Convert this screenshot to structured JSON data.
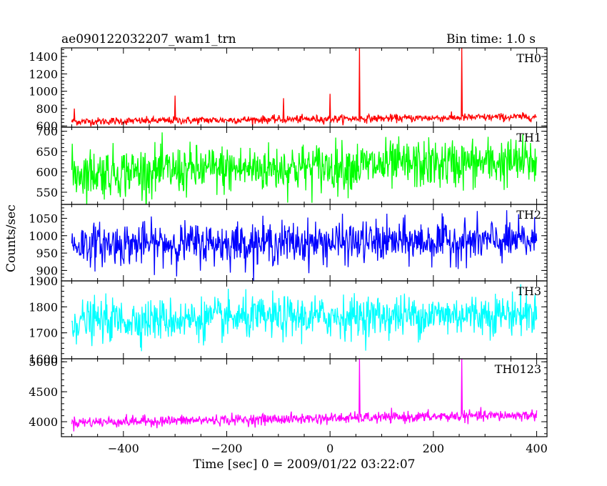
{
  "chart_data": {
    "type": "line",
    "title": "ae090122032207_wam1_trn",
    "subtitle": "Bin time: 1.0 s",
    "xlabel": "Time [sec] 0 = 2009/01/22 03:22:07",
    "ylabel": "Counts/sec",
    "xlim": [
      -520,
      420
    ],
    "x_ticks": [
      -400,
      -200,
      0,
      200,
      400
    ],
    "x_range": [
      -500,
      400
    ],
    "bin_time_s": 1.0,
    "grid": false,
    "panels": [
      {
        "name": "TH0",
        "color": "#ff0000",
        "ylim": [
          585,
          1500
        ],
        "y_ticks": [
          600,
          800,
          1000,
          1200,
          1400
        ],
        "baseline_start": 650,
        "baseline_end": 705,
        "noise": 22,
        "spikes": [
          {
            "x": -495,
            "y": 800
          },
          {
            "x": -300,
            "y": 950
          },
          {
            "x": -90,
            "y": 920
          },
          {
            "x": 0,
            "y": 970
          },
          {
            "x": 57,
            "y": 1500
          },
          {
            "x": 255,
            "y": 1500
          }
        ]
      },
      {
        "name": "TH1",
        "color": "#00ff00",
        "ylim": [
          520,
          710
        ],
        "y_ticks": [
          550,
          600,
          650,
          700
        ],
        "baseline_start": 597,
        "baseline_end": 625,
        "noise": 30,
        "spikes": []
      },
      {
        "name": "TH2",
        "color": "#0000ff",
        "ylim": [
          870,
          1090
        ],
        "y_ticks": [
          900,
          950,
          1000,
          1050
        ],
        "baseline_start": 975,
        "baseline_end": 985,
        "noise": 30,
        "spikes": []
      },
      {
        "name": "TH3",
        "color": "#00ffff",
        "ylim": [
          1600,
          1900
        ],
        "y_ticks": [
          1600,
          1700,
          1800,
          1900
        ],
        "baseline_start": 1745,
        "baseline_end": 1775,
        "noise": 40,
        "spikes": []
      },
      {
        "name": "TH0123",
        "color": "#ff00ff",
        "ylim": [
          3750,
          5050
        ],
        "y_ticks": [
          4000,
          4500,
          5000
        ],
        "baseline_start": 3990,
        "baseline_end": 4110,
        "noise": 45,
        "spikes": [
          {
            "x": 57,
            "y": 5050
          },
          {
            "x": 255,
            "y": 5050
          }
        ]
      }
    ]
  }
}
